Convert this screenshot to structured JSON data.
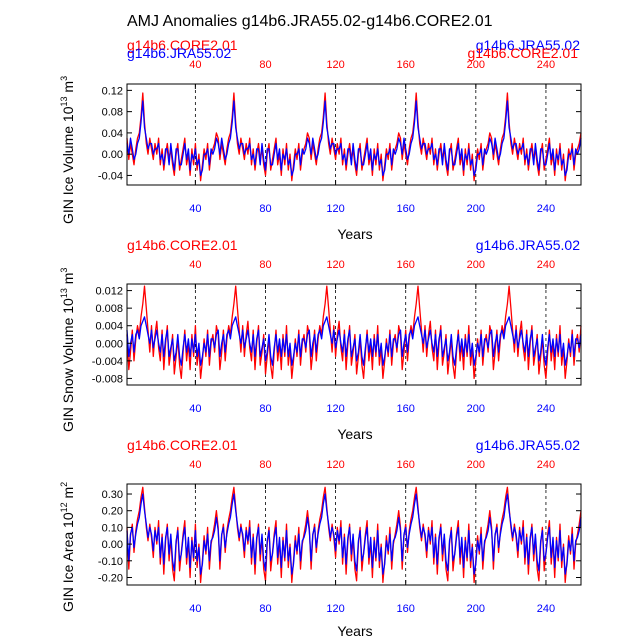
{
  "title": "AMJ Anomalies g14b6.JRA55.02-g14b6.CORE2.01",
  "colors": {
    "core": "#ff0000",
    "jra": "#0000ff",
    "axis": "#000000"
  },
  "chart_data": [
    {
      "type": "line",
      "ylabel_main": "GIN Ice Volume 10",
      "ylabel_exp": "13",
      "ylabel_unit": " m",
      "ylabel_unit_exp": "3",
      "xlabel": "Years",
      "top_left_label": "g14b6.CORE2.01",
      "top_right_label_blue": "g14b6.JRA55.02",
      "top_right_label_red": "g14b6.CORE2.01",
      "overlap_left_label": "g14b6.JRA55.02",
      "xlim": [
        1,
        260
      ],
      "ylim": [
        -0.058,
        0.132
      ],
      "yticks": [
        -0.04,
        0.0,
        0.04,
        0.08,
        0.12
      ],
      "ytick_labels": [
        "-0.04",
        "0.00",
        "0.04",
        "0.08",
        "0.12"
      ],
      "xticks": [
        40,
        80,
        120,
        160,
        200,
        240
      ],
      "xtick_labels": [
        "40",
        "80",
        "120",
        "160",
        "200",
        "240"
      ],
      "peak_years": [
        10,
        62,
        114,
        166,
        218
      ],
      "cycle_period": 52,
      "series": [
        {
          "name": "g14b6.CORE2.01",
          "color": "#ff0000",
          "cycle": [
            0.03,
            -0.01,
            0.02,
            0.0,
            -0.02,
            0.01,
            0.03,
            0.04,
            0.07,
            0.115,
            0.06,
            0.02,
            0.0,
            0.03,
            0.01,
            -0.01,
            0.02,
            0.0,
            0.03,
            -0.02,
            0.01,
            -0.03,
            0.0,
            0.02,
            -0.01,
            0.01,
            -0.02,
            -0.04,
            0.0,
            0.02,
            -0.03,
            -0.01,
            0.01,
            0.03,
            -0.02,
            0.0,
            -0.04,
            0.01,
            -0.02,
            0.02,
            -0.03,
            0.0,
            -0.05,
            -0.02,
            0.01,
            -0.01,
            0.02,
            -0.03,
            0.0,
            0.01,
            0.02,
            0.04
          ]
        },
        {
          "name": "g14b6.JRA55.02",
          "color": "#0000ff",
          "cycle": [
            0.02,
            0.0,
            0.03,
            0.01,
            -0.01,
            0.0,
            0.02,
            0.03,
            0.06,
            0.1,
            0.05,
            0.03,
            0.01,
            0.02,
            0.02,
            0.0,
            0.01,
            0.01,
            0.02,
            -0.01,
            0.0,
            -0.02,
            0.01,
            0.01,
            -0.02,
            0.02,
            -0.01,
            -0.03,
            0.01,
            0.01,
            -0.02,
            -0.02,
            0.0,
            0.02,
            -0.01,
            0.01,
            -0.03,
            0.0,
            -0.01,
            0.01,
            -0.02,
            -0.01,
            -0.04,
            -0.03,
            0.0,
            0.0,
            0.01,
            -0.02,
            0.01,
            0.0,
            0.01,
            0.03
          ]
        }
      ]
    },
    {
      "type": "line",
      "ylabel_main": "GIN Snow Volume 10",
      "ylabel_exp": "13",
      "ylabel_unit": " m",
      "ylabel_unit_exp": "3",
      "xlabel": "Years",
      "top_left_label": "g14b6.CORE2.01",
      "top_right_label_blue": "g14b6.JRA55.02",
      "xlim": [
        1,
        260
      ],
      "ylim": [
        -0.0095,
        0.0135
      ],
      "yticks": [
        -0.008,
        -0.004,
        0.0,
        0.004,
        0.008,
        0.012
      ],
      "ytick_labels": [
        "-0.008",
        "-0.004",
        "0.000",
        "0.004",
        "0.008",
        "0.012"
      ],
      "xticks": [
        40,
        80,
        120,
        160,
        200,
        240
      ],
      "xtick_labels": [
        "40",
        "80",
        "120",
        "160",
        "200",
        "240"
      ],
      "peak_years": [
        11,
        63,
        115,
        167,
        219
      ],
      "cycle_period": 52,
      "series": [
        {
          "name": "g14b6.CORE2.01",
          "color": "#ff0000",
          "cycle": [
            0.002,
            -0.006,
            -0.002,
            0.003,
            -0.004,
            0.001,
            0.004,
            0.002,
            0.006,
            0.009,
            0.013,
            0.008,
            0.003,
            -0.002,
            0.004,
            -0.003,
            0.002,
            0.005,
            -0.001,
            -0.004,
            0.003,
            -0.006,
            0.0,
            0.004,
            -0.005,
            -0.002,
            0.002,
            -0.007,
            -0.003,
            0.001,
            -0.005,
            -0.008,
            -0.002,
            0.003,
            -0.004,
            0.0,
            -0.006,
            0.002,
            -0.003,
            0.004,
            -0.005,
            -0.001,
            -0.008,
            -0.004,
            0.001,
            -0.003,
            0.003,
            -0.005,
            0.0,
            0.002,
            -0.002,
            0.004
          ]
        },
        {
          "name": "g14b6.JRA55.02",
          "color": "#0000ff",
          "cycle": [
            0.003,
            -0.003,
            0.0,
            0.002,
            -0.002,
            0.002,
            0.003,
            0.001,
            0.004,
            0.005,
            0.006,
            0.004,
            0.002,
            0.0,
            0.003,
            -0.001,
            0.001,
            0.003,
            0.0,
            -0.002,
            0.002,
            -0.003,
            0.001,
            0.003,
            -0.003,
            -0.001,
            0.001,
            -0.004,
            -0.002,
            0.002,
            -0.003,
            -0.005,
            -0.001,
            0.002,
            -0.002,
            0.001,
            -0.003,
            0.001,
            -0.002,
            0.002,
            -0.003,
            0.0,
            -0.005,
            -0.003,
            0.0,
            -0.002,
            0.002,
            -0.003,
            0.001,
            0.001,
            -0.001,
            0.002
          ]
        }
      ]
    },
    {
      "type": "line",
      "ylabel_main": "GIN Ice Area 10",
      "ylabel_exp": "12",
      "ylabel_unit": " m",
      "ylabel_unit_exp": "2",
      "xlabel": "Years",
      "top_left_label": "g14b6.CORE2.01",
      "top_right_label_blue": "g14b6.JRA55.02",
      "xlim": [
        1,
        260
      ],
      "ylim": [
        -0.245,
        0.36
      ],
      "yticks": [
        -0.2,
        -0.1,
        0.0,
        0.1,
        0.2,
        0.3
      ],
      "ytick_labels": [
        "-0.20",
        "-0.10",
        "0.00",
        "0.10",
        "0.20",
        "0.30"
      ],
      "xticks": [
        40,
        80,
        120,
        160,
        200,
        240
      ],
      "xtick_labels": [
        "40",
        "80",
        "120",
        "160",
        "200",
        "240"
      ],
      "peak_years": [
        10,
        62,
        114,
        166,
        218
      ],
      "cycle_period": 52,
      "series": [
        {
          "name": "g14b6.CORE2.01",
          "color": "#ff0000",
          "cycle": [
            0.1,
            -0.15,
            0.05,
            0.12,
            -0.05,
            0.08,
            0.15,
            0.2,
            0.28,
            0.34,
            0.22,
            0.1,
            0.02,
            0.12,
            0.04,
            -0.08,
            0.1,
            0.0,
            0.14,
            -0.12,
            0.06,
            -0.18,
            0.02,
            0.12,
            -0.1,
            0.04,
            -0.15,
            -0.22,
            0.0,
            0.1,
            -0.16,
            -0.05,
            0.06,
            0.14,
            -0.12,
            0.02,
            -0.2,
            0.04,
            -0.1,
            0.12,
            -0.14,
            0.0,
            -0.23,
            -0.1,
            0.05,
            -0.06,
            0.1,
            -0.15,
            0.0,
            0.06,
            0.12,
            0.2
          ]
        },
        {
          "name": "g14b6.JRA55.02",
          "color": "#0000ff",
          "cycle": [
            0.08,
            -0.1,
            0.06,
            0.1,
            -0.02,
            0.06,
            0.12,
            0.16,
            0.24,
            0.3,
            0.2,
            0.12,
            0.04,
            0.1,
            0.06,
            -0.04,
            0.08,
            0.02,
            0.1,
            -0.08,
            0.04,
            -0.12,
            0.04,
            0.1,
            -0.06,
            0.06,
            -0.1,
            -0.16,
            0.02,
            0.08,
            -0.1,
            -0.06,
            0.04,
            0.1,
            -0.08,
            0.04,
            -0.14,
            0.02,
            -0.08,
            0.08,
            -0.1,
            -0.02,
            -0.18,
            -0.12,
            0.02,
            -0.04,
            0.06,
            -0.1,
            0.02,
            0.04,
            0.08,
            0.16
          ]
        }
      ]
    }
  ]
}
